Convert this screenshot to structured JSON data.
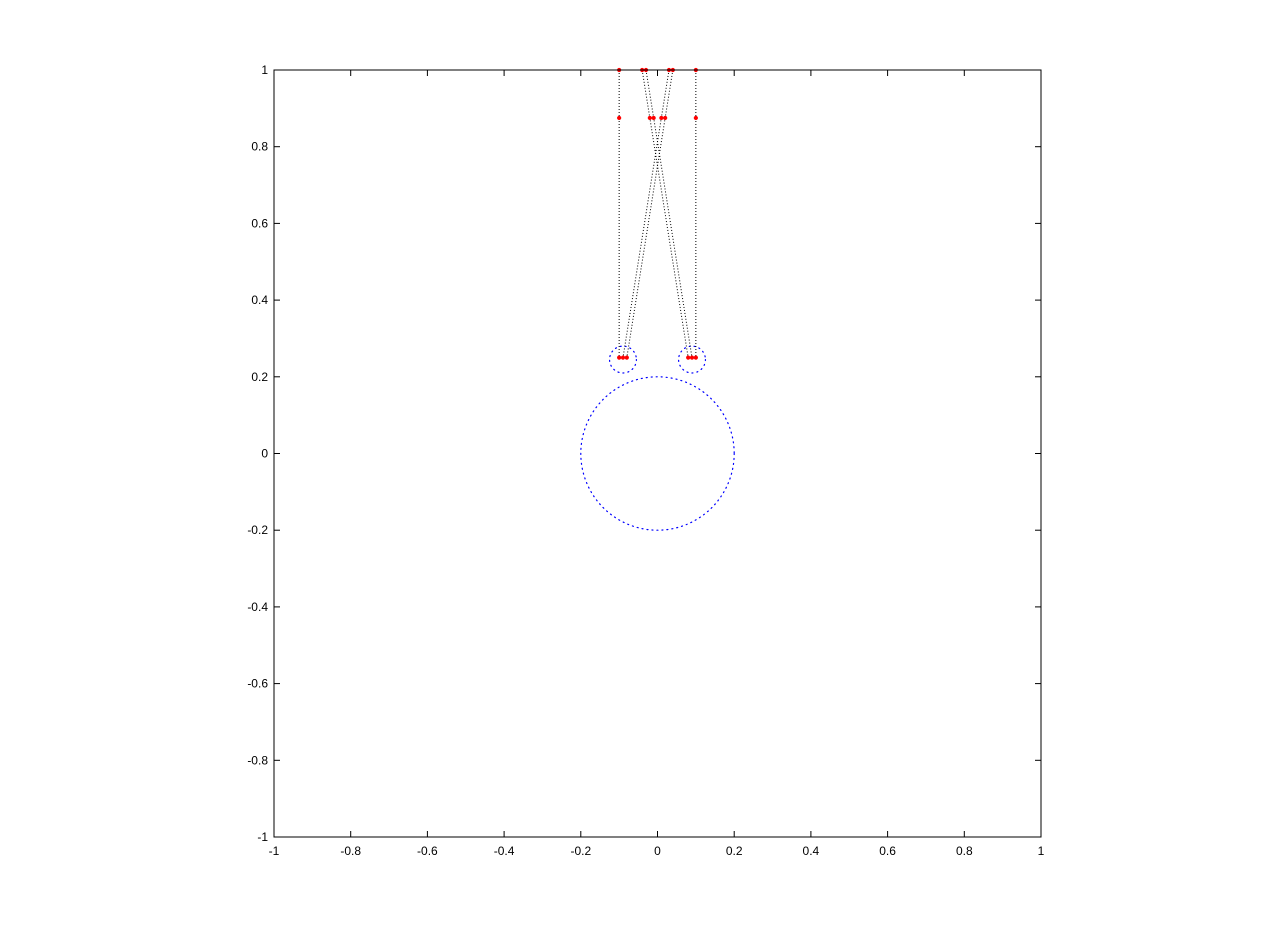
{
  "chart_data": {
    "type": "scatter",
    "title": "",
    "xlabel": "",
    "ylabel": "",
    "xlim": [
      -1,
      1
    ],
    "ylim": [
      -1,
      1
    ],
    "grid": false,
    "legend": "none",
    "xticks": [
      -1,
      -0.8,
      -0.6,
      -0.4,
      -0.2,
      0,
      0.2,
      0.4,
      0.6,
      0.8,
      1
    ],
    "yticks": [
      -1,
      -0.8,
      -0.6,
      -0.4,
      -0.2,
      0,
      0.2,
      0.4,
      0.6,
      0.8,
      1
    ],
    "xtick_labels": [
      "-1",
      "-0.8",
      "-0.6",
      "-0.4",
      "-0.2",
      "0",
      "0.2",
      "0.4",
      "0.6",
      "0.8",
      "1"
    ],
    "ytick_labels": [
      "-1",
      "-0.8",
      "-0.6",
      "-0.4",
      "-0.2",
      "0",
      "0.2",
      "0.4",
      "0.6",
      "0.8",
      "1"
    ],
    "colors": {
      "circles": "#0000ff",
      "rays": "#000000",
      "markers": "#ff0000",
      "axes": "#000000"
    },
    "circles": [
      {
        "cx": 0,
        "cy": 0,
        "r": 0.2,
        "style": "dotted"
      },
      {
        "cx": -0.09,
        "cy": 0.245,
        "r": 0.035,
        "style": "dotted"
      },
      {
        "cx": 0.09,
        "cy": 0.245,
        "r": 0.035,
        "style": "dotted"
      }
    ],
    "rays": [
      {
        "x": [
          -0.1,
          -0.1,
          -0.1
        ],
        "y": [
          1,
          0.875,
          0.25
        ]
      },
      {
        "x": [
          -0.04,
          -0.02,
          0.08
        ],
        "y": [
          1,
          0.875,
          0.25
        ]
      },
      {
        "x": [
          -0.03,
          -0.01,
          0.09
        ],
        "y": [
          1,
          0.875,
          0.25
        ]
      },
      {
        "x": [
          0.03,
          0.01,
          -0.09
        ],
        "y": [
          1,
          0.875,
          0.25
        ]
      },
      {
        "x": [
          0.04,
          0.02,
          -0.08
        ],
        "y": [
          1,
          0.875,
          0.25
        ]
      },
      {
        "x": [
          0.1,
          0.1,
          0.1
        ],
        "y": [
          1,
          0.875,
          0.25
        ]
      }
    ],
    "markers": {
      "x": [
        -0.1,
        -0.04,
        -0.03,
        0.03,
        0.04,
        0.1,
        -0.1,
        -0.02,
        -0.01,
        0.01,
        0.02,
        0.1,
        -0.1,
        -0.09,
        -0.08,
        0.08,
        0.09,
        0.1
      ],
      "y": [
        1,
        1,
        1,
        1,
        1,
        1,
        0.875,
        0.875,
        0.875,
        0.875,
        0.875,
        0.875,
        0.25,
        0.25,
        0.25,
        0.25,
        0.25,
        0.25
      ]
    }
  }
}
